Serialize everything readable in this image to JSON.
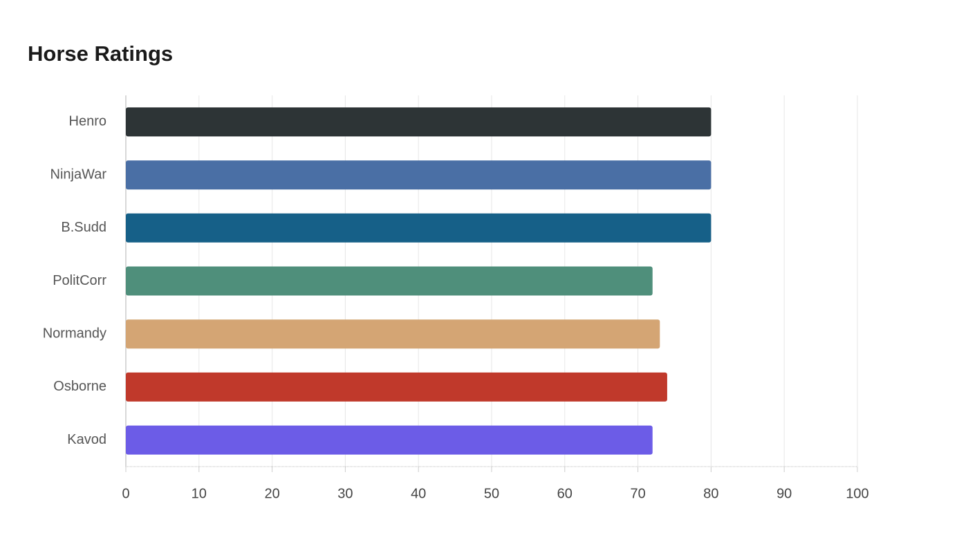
{
  "chart_data": {
    "type": "bar",
    "orientation": "horizontal",
    "title": "Horse Ratings",
    "categories": [
      "Henro",
      "NinjaWar",
      "B.Sudd",
      "PolitCorr",
      "Normandy",
      "Osborne",
      "Kavod"
    ],
    "values": [
      80,
      80,
      80,
      72,
      73,
      74,
      72
    ],
    "colors": [
      "#2d3436",
      "#4a6fa5",
      "#166088",
      "#4f8f7b",
      "#d4a574",
      "#c0392b",
      "#6c5ce7"
    ],
    "xlim": [
      0,
      100
    ],
    "xticks": [
      0,
      10,
      20,
      30,
      40,
      50,
      60,
      70,
      80,
      90,
      100
    ],
    "grid": true
  }
}
